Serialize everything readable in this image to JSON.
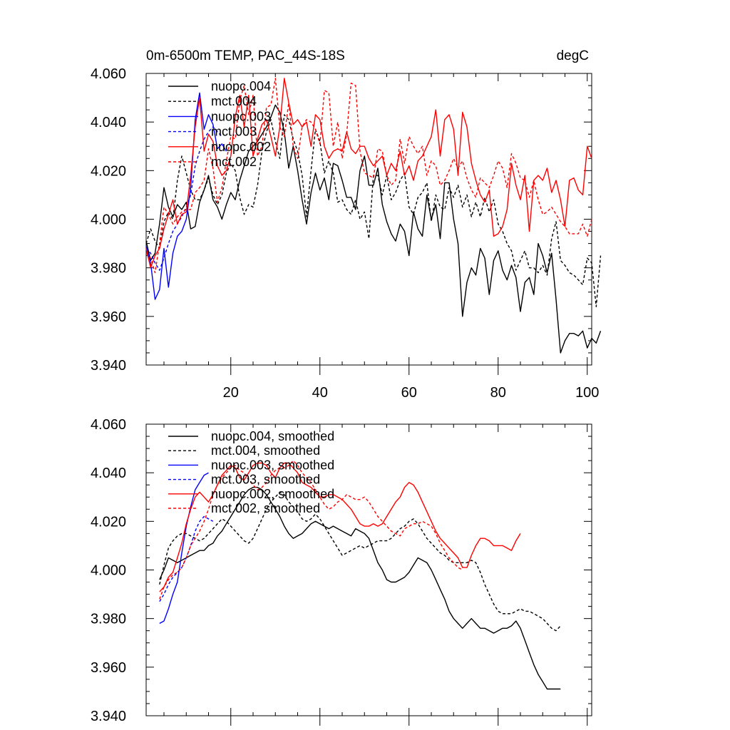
{
  "chart_data": [
    {
      "type": "line",
      "title_left": "0m-6500m TEMP, PAC_44S-18S",
      "title_right": "degC",
      "xlim": [
        1,
        101
      ],
      "ylim": [
        3.94,
        4.06
      ],
      "xticks": [
        20,
        40,
        60,
        80,
        100
      ],
      "xtick_labels": [
        "20",
        "40",
        "60",
        "80",
        "100"
      ],
      "yticks": [
        3.94,
        3.96,
        3.98,
        4.0,
        4.02,
        4.04,
        4.06
      ],
      "ytick_labels": [
        "3.940",
        "3.960",
        "3.980",
        "4.000",
        "4.020",
        "4.040",
        "4.060"
      ],
      "legend_location": "top-left",
      "series": [
        {
          "name": "nuopc.004",
          "color": "#000000",
          "dash": "solid",
          "x_start": 1,
          "values": [
            3.991,
            3.983,
            3.986,
            3.998,
            4.013,
            4.005,
            4.001,
            4.006,
            4.004,
            4.007,
            3.996,
            3.997,
            4.007,
            4.012,
            4.018,
            4.008,
            4.005,
            4.0,
            4.006,
            4.011,
            4.008,
            4.016,
            4.022,
            4.028,
            4.03,
            4.032,
            4.035,
            4.038,
            4.042,
            4.047,
            4.044,
            4.036,
            4.021,
            4.03,
            4.02,
            4.008,
            3.998,
            4.011,
            4.019,
            4.012,
            4.017,
            4.008,
            4.023,
            4.022,
            4.016,
            4.009,
            4.009,
            4.004,
            4.02,
            4.026,
            4.014,
            4.014,
            4.021,
            4.006,
            3.999,
            3.994,
            3.991,
            3.998,
            3.995,
            3.985,
            4.003,
            3.996,
            3.993,
            4.01,
            4.0,
            4.006,
            3.992,
            4.015,
            4.015,
            4.0,
            3.99,
            3.96,
            3.974,
            3.98,
            3.977,
            3.988,
            3.984,
            3.969,
            3.983,
            3.987,
            3.979,
            3.975,
            3.981,
            3.976,
            3.962,
            3.974,
            3.976,
            3.969,
            3.99,
            3.985,
            3.978,
            3.986,
            3.967,
            3.945,
            3.95,
            3.953,
            3.953,
            3.952,
            3.954,
            3.947,
            3.951,
            3.949,
            3.954
          ]
        },
        {
          "name": "mct.004",
          "color": "#000000",
          "dash": "dashed",
          "x_start": 1,
          "values": [
            3.99,
            3.996,
            3.991,
            3.988,
            3.999,
            4.003,
            4.0,
            4.016,
            4.026,
            4.019,
            4.012,
            4.008,
            4.008,
            4.012,
            4.017,
            4.01,
            4.006,
            4.01,
            4.019,
            4.023,
            4.02,
            4.009,
            4.002,
            4.006,
            4.005,
            4.014,
            4.028,
            4.036,
            4.041,
            4.032,
            4.025,
            4.043,
            4.041,
            4.033,
            4.028,
            4.018,
            4.001,
            4.02,
            4.037,
            4.032,
            4.019,
            4.024,
            4.019,
            4.007,
            4.008,
            4.004,
            4.002,
            4.008,
            4.0,
            4.003,
            3.992,
            4.018,
            4.018,
            4.01,
            4.018,
            4.008,
            4.011,
            4.016,
            4.019,
            4.005,
            4.002,
            4.009,
            4.011,
            4.015,
            3.999,
            4.01,
            4.005,
            4.004,
            4.013,
            4.009,
            4.014,
            4.005,
            4.01,
            4.001,
            4.007,
            4.001,
            4.009,
            4.003,
            4.008,
            3.998,
            3.995,
            3.99,
            3.987,
            3.979,
            3.983,
            3.987,
            3.98,
            3.98,
            3.978,
            3.981,
            3.977,
            3.992,
            3.999,
            3.983,
            3.981,
            3.978,
            3.977,
            3.975,
            3.973,
            3.984,
            3.982,
            3.964,
            3.985
          ]
        },
        {
          "name": "nuopc.003",
          "color": "#0000ff",
          "dash": "solid",
          "x_start": 1,
          "values": [
            3.989,
            3.982,
            3.967,
            3.971,
            3.988,
            3.972,
            3.986,
            3.993,
            3.995,
            4.0,
            4.013,
            4.041,
            4.052,
            4.037,
            4.043,
            4.039,
            4.029,
            4.031,
            4.028
          ]
        },
        {
          "name": "mct.003",
          "color": "#0000ff",
          "dash": "dashed",
          "x_start": 1,
          "values": [
            3.988,
            3.986,
            3.982,
            3.979,
            3.984,
            3.99,
            3.995,
            3.998,
            4.001,
            4.005,
            4.01,
            4.022,
            4.028,
            4.033,
            4.036,
            4.038,
            4.036,
            4.034
          ]
        },
        {
          "name": "nuopc.002",
          "color": "#ff0000",
          "dash": "solid",
          "x_start": 1,
          "values": [
            3.988,
            3.98,
            3.985,
            3.988,
            3.996,
            4.002,
            4.008,
            3.998,
            4.002,
            4.003,
            4.018,
            4.038,
            4.05,
            4.028,
            4.035,
            4.032,
            4.022,
            4.018,
            4.02,
            4.026,
            4.042,
            4.051,
            4.038,
            4.051,
            4.026,
            4.033,
            4.039,
            4.041,
            4.034,
            4.026,
            4.038,
            4.058,
            4.048,
            4.039,
            4.041,
            4.038,
            4.04,
            4.03,
            4.043,
            4.041,
            4.03,
            4.025,
            4.028,
            4.029,
            4.028,
            4.036,
            4.029,
            4.027,
            4.03,
            4.03,
            4.025,
            4.022,
            4.024,
            4.026,
            4.018,
            4.023,
            4.02,
            4.028,
            4.018,
            4.022,
            4.016,
            4.024,
            4.026,
            4.03,
            4.034,
            4.045,
            4.026,
            4.041,
            4.043,
            4.037,
            4.018,
            4.044,
            4.038,
            4.023,
            4.016,
            4.01,
            4.007,
            4.012,
            3.993,
            3.994,
            3.997,
            4.004,
            4.023,
            4.014,
            4.008,
            4.018,
            3.995,
            4.016,
            4.018,
            4.016,
            4.021,
            4.011,
            4.016,
            4.008,
            3.997,
            4.016,
            4.017,
            4.012,
            4.01,
            4.03,
            4.025
          ]
        },
        {
          "name": "mct.002",
          "color": "#ff0000",
          "dash": "dashed",
          "x_start": 1,
          "values": [
            3.986,
            3.984,
            3.978,
            3.99,
            4.005,
            4.002,
            3.998,
            4.001,
            4.003,
            4.004,
            4.004,
            4.011,
            4.013,
            4.016,
            4.029,
            4.021,
            4.007,
            4.013,
            4.024,
            4.034,
            4.033,
            4.049,
            4.055,
            4.043,
            4.051,
            4.026,
            4.03,
            4.046,
            4.047,
            4.058,
            4.038,
            4.034,
            4.048,
            4.03,
            4.025,
            4.038,
            4.041,
            4.04,
            4.037,
            4.031,
            4.053,
            4.052,
            4.03,
            4.04,
            4.025,
            4.035,
            4.056,
            4.055,
            4.028,
            4.019,
            4.018,
            4.017,
            4.029,
            4.028,
            4.018,
            4.014,
            4.016,
            4.033,
            4.023,
            4.034,
            4.03,
            4.027,
            4.03,
            4.018,
            4.024,
            4.022,
            4.014,
            4.016,
            4.02,
            4.025,
            4.021,
            4.024,
            4.017,
            4.012,
            4.009,
            4.017,
            4.015,
            4.013,
            4.018,
            4.024,
            4.021,
            4.013,
            4.027,
            4.023,
            4.017,
            4.016,
            4.009,
            4.016,
            4.008,
            4.002,
            4.003,
            4.005,
            4.002,
            3.999,
            3.997,
            3.994,
            3.994,
            3.994,
            3.998,
            3.993,
            4.0
          ]
        }
      ]
    },
    {
      "type": "line",
      "xlim": [
        1,
        101
      ],
      "ylim": [
        3.94,
        4.06
      ],
      "xticks": [
        20,
        40,
        60,
        80,
        100
      ],
      "yticks": [
        3.94,
        3.96,
        3.98,
        4.0,
        4.02,
        4.04,
        4.06
      ],
      "ytick_labels": [
        "3.940",
        "3.960",
        "3.980",
        "4.000",
        "4.020",
        "4.040",
        "4.060"
      ],
      "legend_location": "top-left",
      "series": [
        {
          "name": "nuopc.004, smoothed",
          "color": "#000000",
          "dash": "solid",
          "x_start": 4,
          "values": [
            3.996,
            4.0,
            4.005,
            4.004,
            4.003,
            4.004,
            4.005,
            4.006,
            4.007,
            4.008,
            4.008,
            4.01,
            4.011,
            4.014,
            4.016,
            4.019,
            4.022,
            4.025,
            4.028,
            4.031,
            4.033,
            4.034,
            4.034,
            4.033,
            4.031,
            4.028,
            4.025,
            4.022,
            4.018,
            4.015,
            4.013,
            4.014,
            4.015,
            4.017,
            4.019,
            4.02,
            4.019,
            4.018,
            4.017,
            4.018,
            4.017,
            4.016,
            4.015,
            4.014,
            4.017,
            4.016,
            4.015,
            4.013,
            4.008,
            4.003,
            4.0,
            3.996,
            3.995,
            3.995,
            3.996,
            3.997,
            3.999,
            4.002,
            4.005,
            4.004,
            4.003,
            4.0,
            3.996,
            3.992,
            3.988,
            3.983,
            3.98,
            3.978,
            3.976,
            3.978,
            3.98,
            3.978,
            3.976,
            3.976,
            3.975,
            3.974,
            3.975,
            3.976,
            3.976,
            3.977,
            3.979,
            3.976,
            3.971,
            3.966,
            3.961,
            3.957,
            3.954,
            3.951,
            3.951,
            3.951,
            3.951
          ]
        },
        {
          "name": "mct.004, smoothed",
          "color": "#000000",
          "dash": "dashed",
          "x_start": 4,
          "values": [
            3.994,
            4.002,
            4.009,
            4.012,
            4.014,
            4.015,
            4.015,
            4.014,
            4.013,
            4.012,
            4.013,
            4.015,
            4.017,
            4.019,
            4.021,
            4.02,
            4.018,
            4.016,
            4.014,
            4.012,
            4.011,
            4.013,
            4.017,
            4.021,
            4.025,
            4.028,
            4.03,
            4.032,
            4.031,
            4.028,
            4.026,
            4.024,
            4.021,
            4.02,
            4.021,
            4.023,
            4.021,
            4.018,
            4.015,
            4.012,
            4.009,
            4.006,
            4.007,
            4.008,
            4.009,
            4.01,
            4.009,
            4.01,
            4.011,
            4.012,
            4.012,
            4.012,
            4.013,
            4.015,
            4.017,
            4.018,
            4.02,
            4.021,
            4.019,
            4.016,
            4.013,
            4.011,
            4.009,
            4.007,
            4.006,
            4.004,
            4.003,
            4.003,
            4.003,
            4.003,
            4.004,
            4.003,
            3.999,
            3.994,
            3.99,
            3.986,
            3.983,
            3.982,
            3.982,
            3.982,
            3.983,
            3.984,
            3.983,
            3.983,
            3.982,
            3.981,
            3.98,
            3.978,
            3.976,
            3.975,
            3.977
          ]
        },
        {
          "name": "nuopc.003, smoothed",
          "color": "#0000ff",
          "dash": "solid",
          "x_start": 4,
          "values": [
            3.978,
            3.979,
            3.984,
            3.99,
            3.995,
            4.007,
            4.018,
            4.026,
            4.033,
            4.036,
            4.039,
            4.04
          ]
        },
        {
          "name": "mct.003, smoothed",
          "color": "#0000ff",
          "dash": "dashed",
          "x_start": 4,
          "values": [
            3.987,
            3.99,
            3.994,
            3.997,
            3.999,
            4.001,
            4.005,
            4.01,
            4.016,
            4.02,
            4.022,
            4.021,
            4.02
          ]
        },
        {
          "name": "nuopc.002, smoothed",
          "color": "#ff0000",
          "dash": "solid",
          "x_start": 4,
          "values": [
            3.991,
            3.993,
            3.997,
            3.999,
            4.005,
            4.011,
            4.019,
            4.025,
            4.03,
            4.032,
            4.03,
            4.028,
            4.031,
            4.035,
            4.039,
            4.041,
            4.043,
            4.042,
            4.038,
            4.037,
            4.04,
            4.043,
            4.044,
            4.044,
            4.043,
            4.04,
            4.038,
            4.042,
            4.044,
            4.044,
            4.042,
            4.04,
            4.036,
            4.035,
            4.034,
            4.032,
            4.03,
            4.03,
            4.031,
            4.031,
            4.03,
            4.029,
            4.027,
            4.025,
            4.022,
            4.019,
            4.018,
            4.018,
            4.019,
            4.018,
            4.019,
            4.022,
            4.025,
            4.028,
            4.03,
            4.034,
            4.036,
            4.035,
            4.032,
            4.028,
            4.024,
            4.02,
            4.016,
            4.013,
            4.011,
            4.009,
            4.007,
            4.005,
            4.001,
            4.001,
            4.006,
            4.01,
            4.013,
            4.013,
            4.012,
            4.01,
            4.01,
            4.01,
            4.009,
            4.008,
            4.012,
            4.015
          ]
        },
        {
          "name": "mct.002, smoothed",
          "color": "#ff0000",
          "dash": "dashed",
          "x_start": 4,
          "values": [
            3.988,
            3.993,
            3.996,
            3.998,
            3.999,
            4.001,
            4.005,
            4.01,
            4.013,
            4.016,
            4.02,
            4.025,
            4.031,
            4.035,
            4.038,
            4.04,
            4.042,
            4.043,
            4.041,
            4.04,
            4.037,
            4.035,
            4.033,
            4.034,
            4.036,
            4.039,
            4.041,
            4.042,
            4.042,
            4.043,
            4.045,
            4.043,
            4.04,
            4.038,
            4.036,
            4.033,
            4.03,
            4.027,
            4.025,
            4.026,
            4.028,
            4.029,
            4.031,
            4.03,
            4.029,
            4.029,
            4.03,
            4.028,
            4.025,
            4.022,
            4.02,
            4.018,
            4.016,
            4.015,
            4.014,
            4.017,
            4.018,
            4.019,
            4.019,
            4.02,
            4.019,
            4.018,
            4.015,
            4.011,
            4.008,
            4.005,
            4.003,
            4.001,
            4.0
          ]
        }
      ]
    }
  ]
}
